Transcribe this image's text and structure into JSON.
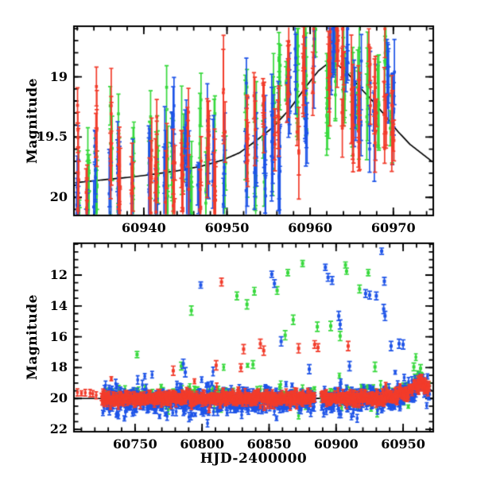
{
  "figure": {
    "background": "#ffffff",
    "frame_color": "#000000",
    "axis_text_color": "#000000"
  },
  "chart_data": [
    {
      "type": "scatter",
      "panel": "top-zoom-light-curve",
      "title": "",
      "xlabel": "",
      "ylabel": "Magnitude",
      "grid": false,
      "legend": "none",
      "y_axis_inverted_magnitude": true,
      "x_range": [
        60931.6,
        60974.8
      ],
      "y_range": [
        20.15,
        18.58
      ],
      "x_major_ticks": [
        60940,
        60950,
        60960,
        60970
      ],
      "x_tick_labels": [
        "60940",
        "60950",
        "60960",
        "60970"
      ],
      "x_minor_step": 2,
      "y_major_ticks": [
        19,
        19.5,
        20
      ],
      "y_tick_labels": [
        "19",
        "19.5",
        "20"
      ],
      "y_minor_step": 0.1,
      "series": [
        {
          "band": "green",
          "color": "#37d93c"
        },
        {
          "band": "blue",
          "color": "#1e54e8"
        },
        {
          "band": "red",
          "color": "#f23c2b"
        }
      ],
      "model_curve": {
        "color": "#000000",
        "points": [
          [
            60931.6,
            19.88
          ],
          [
            60935,
            19.855
          ],
          [
            60938,
            19.835
          ],
          [
            60941,
            19.81
          ],
          [
            60944,
            19.78
          ],
          [
            60947,
            19.74
          ],
          [
            60949.5,
            19.69
          ],
          [
            60951.5,
            19.63
          ],
          [
            60953.5,
            19.53
          ],
          [
            60955.5,
            19.42
          ],
          [
            60957.5,
            19.27
          ],
          [
            60959.5,
            19.08
          ],
          [
            60961,
            18.95
          ],
          [
            60962.3,
            18.88
          ],
          [
            60963.3,
            18.9
          ],
          [
            60964.5,
            18.97
          ],
          [
            60966,
            19.09
          ],
          [
            60967.5,
            19.2
          ],
          [
            60969,
            19.32
          ],
          [
            60970.5,
            19.45
          ],
          [
            60972,
            19.56
          ],
          [
            60974.8,
            19.71
          ]
        ]
      },
      "nightly_clusters": {
        "seed": 20250,
        "t_start": 60932.1,
        "t_end": 60970.4,
        "night_step": 0.97,
        "night_jitter": 0.3,
        "skip_prob": 0.07,
        "night_spread": 0.3,
        "center_sigma": 0.2,
        "point_sigma": 0.17,
        "n_min": 3,
        "n_max": 8,
        "bright_tail_prob": 0.045,
        "bright_tail": [
          0.25,
          0.75
        ],
        "clip": [
          18.6,
          20.32
        ],
        "err_base": 0.11,
        "err_sigma": 0.13,
        "err_max": 0.45
      }
    },
    {
      "type": "scatter",
      "panel": "bottom-full-light-curve",
      "title": "",
      "xlabel": "HJD-2400000",
      "ylabel": "Magnitude",
      "grid": false,
      "legend": "none",
      "y_axis_inverted_magnitude": true,
      "x_range": [
        60704.4,
        60972.5
      ],
      "y_range": [
        22.15,
        9.94
      ],
      "x_major_ticks": [
        60750,
        60800,
        60850,
        60900,
        60950
      ],
      "x_tick_labels": [
        "60750",
        "60800",
        "60850",
        "60900",
        "60950"
      ],
      "x_minor_step": 10,
      "y_major_ticks": [
        12,
        14,
        16,
        18,
        20,
        22
      ],
      "y_tick_labels": [
        "12",
        "14",
        "16",
        "18",
        "20",
        "22"
      ],
      "y_minor_step": 0.5,
      "series": [
        {
          "band": "green",
          "color": "#37d93c"
        },
        {
          "band": "blue",
          "color": "#1e54e8"
        },
        {
          "band": "red",
          "color": "#f23c2b"
        }
      ],
      "model_curve": {
        "color": "#000000",
        "points": [
          [
            60704.4,
            20.0
          ],
          [
            60800,
            20.0
          ],
          [
            60900,
            19.99
          ],
          [
            60925,
            19.97
          ],
          [
            60935,
            19.92
          ],
          [
            60942,
            19.85
          ],
          [
            60947,
            19.77
          ],
          [
            60951,
            19.66
          ],
          [
            60954,
            19.54
          ],
          [
            60957,
            19.35
          ],
          [
            60959.5,
            19.12
          ],
          [
            60961.5,
            18.95
          ],
          [
            60962.5,
            18.88
          ],
          [
            60963.5,
            18.92
          ],
          [
            60965,
            19.02
          ],
          [
            60967,
            19.17
          ],
          [
            60969,
            19.32
          ],
          [
            60971,
            19.47
          ],
          [
            60972.5,
            19.56
          ]
        ]
      },
      "band_gaps": [
        [
          60884.3,
          60888.8
        ]
      ],
      "bands": [
        {
          "band": "red",
          "seed": 11,
          "t_start": 60707,
          "t_end": 60722,
          "t_step": 2.8,
          "center_abs": 19.72,
          "sigma": 0.1,
          "err": [
            0.15,
            0.28
          ]
        },
        {
          "band": "green",
          "seed": 21,
          "t_start": 60729,
          "t_end": 60969.5,
          "t_step": 0.8,
          "offset": -0.08,
          "sigma": 0.33,
          "err": [
            0.1,
            0.28
          ],
          "bright_prob": 0.04,
          "bright_mag": [
            0.4,
            2.0
          ],
          "faint_prob": 0.02,
          "faint_mag": [
            0.3,
            0.9
          ]
        },
        {
          "band": "blue",
          "seed": 31,
          "t_start": 60726,
          "t_end": 60969.5,
          "t_step": 0.26,
          "offset": 0.13,
          "sigma": 0.38,
          "err": [
            0.1,
            0.3
          ],
          "bright_prob": 0.04,
          "bright_mag": [
            0.3,
            1.5
          ],
          "faint_prob": 0.05,
          "faint_mag": [
            0.3,
            1.1
          ]
        },
        {
          "band": "red",
          "seed": 41,
          "t_start": 60725,
          "t_end": 60969.5,
          "t_step": 0.27,
          "offset": 0.0,
          "sigma": 0.2,
          "err": [
            0.1,
            0.25
          ],
          "bright_prob": 0.012,
          "bright_mag": [
            0.3,
            1.2
          ],
          "faint_prob": 0.012,
          "faint_mag": [
            0.2,
            0.5
          ]
        }
      ],
      "outliers": {
        "green": [
          [
            60751.5,
            17.15,
            0.2
          ],
          [
            60784.5,
            17.9,
            0.25
          ],
          [
            60792,
            14.3,
            0.3
          ],
          [
            60826,
            13.35,
            0.25
          ],
          [
            60833.5,
            13.9,
            0.3
          ],
          [
            60838,
            17.8,
            0.25
          ],
          [
            60839,
            13.05,
            0.25
          ],
          [
            60856,
            13.0,
            0.25
          ],
          [
            60862,
            15.9,
            0.3
          ],
          [
            60864,
            11.85,
            0.2
          ],
          [
            60868,
            14.9,
            0.3
          ],
          [
            60875,
            11.25,
            0.2
          ],
          [
            60886,
            15.35,
            0.3
          ],
          [
            60896,
            15.3,
            0.3
          ],
          [
            60903,
            15.95,
            0.3
          ],
          [
            60907,
            11.35,
            0.2
          ],
          [
            60907.8,
            11.75,
            0.2
          ],
          [
            60917.5,
            12.9,
            0.25
          ],
          [
            60924,
            11.85,
            0.2
          ],
          [
            60929,
            17.95,
            0.3
          ],
          [
            60958,
            17.95,
            0.25
          ],
          [
            60963,
            18.05,
            0.25
          ]
        ],
        "blue": [
          [
            60786,
            17.75,
            0.3
          ],
          [
            60787.5,
            18.3,
            0.3
          ],
          [
            60799,
            12.65,
            0.2
          ],
          [
            60852,
            11.95,
            0.2
          ],
          [
            60854,
            12.55,
            0.25
          ],
          [
            60859,
            16.3,
            0.3
          ],
          [
            60880,
            18.1,
            0.3
          ],
          [
            60892,
            11.5,
            0.2
          ],
          [
            60894,
            12.15,
            0.25
          ],
          [
            60897,
            12.35,
            0.25
          ],
          [
            60902,
            14.65,
            0.3
          ],
          [
            60903,
            15.2,
            0.3
          ],
          [
            60910,
            17.9,
            0.3
          ],
          [
            60922,
            13.2,
            0.25
          ],
          [
            60925,
            13.3,
            0.25
          ],
          [
            60930,
            13.35,
            0.25
          ],
          [
            60934,
            10.45,
            0.2
          ],
          [
            60935.5,
            14.2,
            0.3
          ],
          [
            60936,
            12.4,
            0.25
          ],
          [
            60936.5,
            14.65,
            0.3
          ],
          [
            60941,
            16.6,
            0.3
          ],
          [
            60947,
            16.45,
            0.3
          ],
          [
            60950,
            16.5,
            0.3
          ]
        ],
        "red": [
          [
            60778.5,
            18.2,
            0.3
          ],
          [
            60810.5,
            17.85,
            0.3
          ],
          [
            60814.5,
            12.45,
            0.25
          ],
          [
            60829,
            18.0,
            0.25
          ],
          [
            60831,
            16.8,
            0.3
          ],
          [
            60843.5,
            16.45,
            0.3
          ],
          [
            60846,
            16.9,
            0.3
          ],
          [
            60872,
            16.75,
            0.3
          ],
          [
            60884,
            16.5,
            0.25
          ],
          [
            60886.5,
            16.7,
            0.25
          ],
          [
            60909,
            16.6,
            0.3
          ]
        ]
      }
    }
  ]
}
